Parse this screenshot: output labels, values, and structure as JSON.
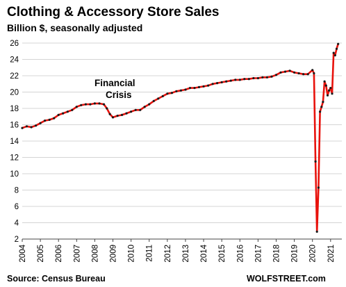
{
  "chart_data": {
    "type": "line",
    "title": "Clothing & Accessory Store Sales",
    "subtitle": "Billion $, seasonally adjusted",
    "source": "Source: Census Bureau",
    "watermark": "WOLFSTREET.com",
    "annotation_lines": [
      "Financial",
      "Crisis"
    ],
    "xlabel": "",
    "ylabel": "",
    "ylim": [
      2,
      26
    ],
    "yticks": [
      2,
      4,
      6,
      8,
      10,
      12,
      14,
      16,
      18,
      20,
      22,
      24,
      26
    ],
    "xticks": [
      "2004",
      "2005",
      "2006",
      "2007",
      "2008",
      "2009",
      "2010",
      "2011",
      "2012",
      "2013",
      "2014",
      "2015",
      "2016",
      "2017",
      "2018",
      "2019",
      "2020",
      "2021"
    ],
    "grid": "horizontal",
    "line_color": "#e8120c",
    "marker_color": "#1a1a1a",
    "x": [
      "2004-01",
      "2004-04",
      "2004-07",
      "2004-10",
      "2005-01",
      "2005-04",
      "2005-07",
      "2005-10",
      "2006-01",
      "2006-04",
      "2006-07",
      "2006-10",
      "2007-01",
      "2007-04",
      "2007-07",
      "2007-10",
      "2008-01",
      "2008-04",
      "2008-07",
      "2008-09",
      "2008-11",
      "2009-01",
      "2009-04",
      "2009-07",
      "2009-10",
      "2010-01",
      "2010-04",
      "2010-07",
      "2010-10",
      "2011-01",
      "2011-04",
      "2011-07",
      "2011-10",
      "2012-01",
      "2012-04",
      "2012-07",
      "2012-10",
      "2013-01",
      "2013-04",
      "2013-07",
      "2013-10",
      "2014-01",
      "2014-04",
      "2014-07",
      "2014-10",
      "2015-01",
      "2015-04",
      "2015-07",
      "2015-10",
      "2016-01",
      "2016-04",
      "2016-07",
      "2016-10",
      "2017-01",
      "2017-04",
      "2017-07",
      "2017-10",
      "2018-01",
      "2018-04",
      "2018-07",
      "2018-10",
      "2019-01",
      "2019-04",
      "2019-07",
      "2019-10",
      "2020-01",
      "2020-02",
      "2020-03",
      "2020-04",
      "2020-05",
      "2020-06",
      "2020-07",
      "2020-08",
      "2020-09",
      "2020-10",
      "2020-11",
      "2020-12",
      "2021-01",
      "2021-02",
      "2021-03",
      "2021-04",
      "2021-05",
      "2021-06"
    ],
    "values": [
      15.6,
      15.8,
      15.7,
      15.9,
      16.2,
      16.5,
      16.6,
      16.8,
      17.2,
      17.4,
      17.6,
      17.8,
      18.2,
      18.4,
      18.5,
      18.5,
      18.6,
      18.6,
      18.5,
      18.0,
      17.3,
      16.9,
      17.1,
      17.2,
      17.4,
      17.6,
      17.8,
      17.8,
      18.2,
      18.5,
      18.9,
      19.2,
      19.5,
      19.8,
      19.9,
      20.1,
      20.2,
      20.3,
      20.5,
      20.5,
      20.6,
      20.7,
      20.8,
      21.0,
      21.1,
      21.2,
      21.3,
      21.4,
      21.5,
      21.5,
      21.6,
      21.6,
      21.7,
      21.7,
      21.8,
      21.8,
      21.9,
      22.1,
      22.4,
      22.5,
      22.6,
      22.4,
      22.3,
      22.2,
      22.2,
      22.7,
      22.3,
      11.5,
      2.9,
      8.3,
      17.6,
      18.2,
      18.8,
      21.3,
      20.8,
      19.6,
      20.2,
      20.5,
      19.8,
      24.8,
      24.5,
      25.3,
      25.9
    ]
  }
}
